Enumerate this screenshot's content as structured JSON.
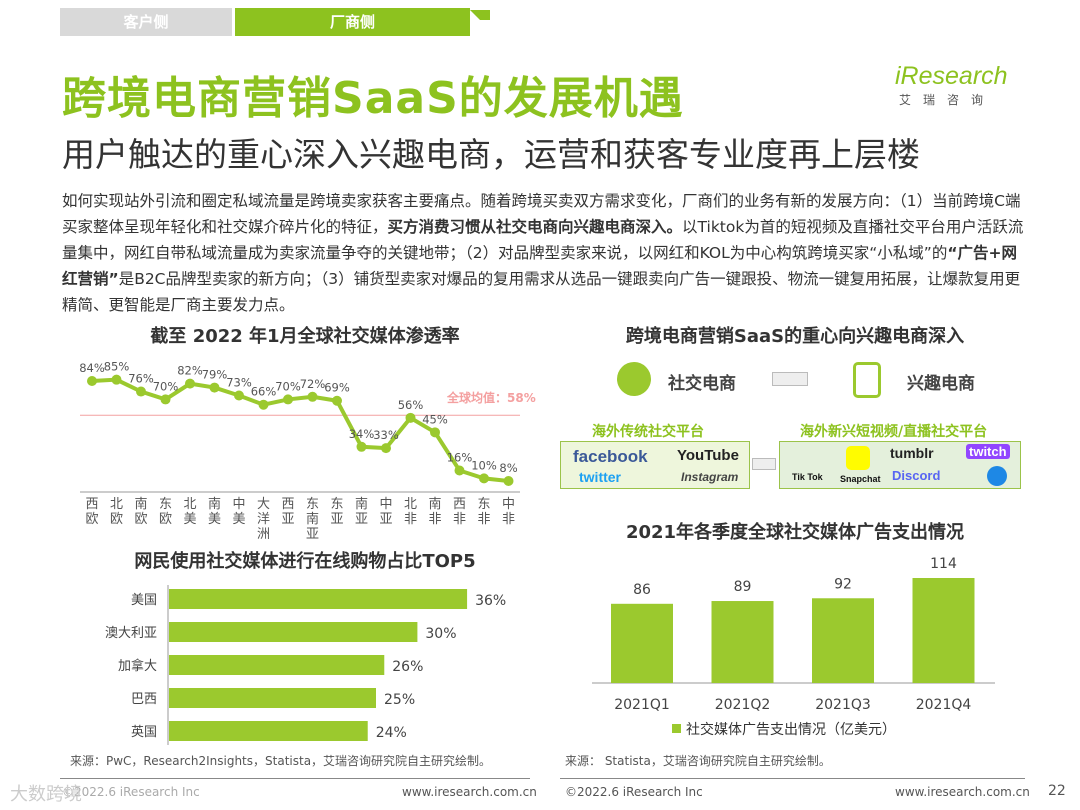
{
  "tabs": [
    {
      "label": "客户侧"
    },
    {
      "label": "厂商侧"
    }
  ],
  "title": "跨境电商营销SaaS的发展机遇",
  "subtitle": "用户触达的重心深入兴趣电商，运营和获客专业度再上层楼",
  "logo": {
    "brand": "iResearch",
    "cn": "艾瑞咨询"
  },
  "paragraph": {
    "p1": "如何实现站外引流和圈定私域流量是跨境卖家获客主要痛点。随着跨境买卖双方需求变化，厂商们的业务有新的发展方向：（1）当前跨境C端买家整体呈现年轻化和社交媒介碎片化的特征，",
    "b1": "买方消费习惯从社交电商向兴趣电商深入。",
    "p2": "以Tiktok为首的短视频及直播社交平台用户活跃流量集中，网红自带私域流量成为卖家流量争夺的关键地带；（2）对品牌型卖家来说，以网红和KOL为中心构筑跨境买家“小私域”的",
    "b2": "“广告+网红营销”",
    "p3": "是B2C品牌型卖家的新方向；（3）铺货型卖家对爆品的复用需求从选品一键跟卖向广告一键跟投、物流一键复用拓展，让爆款复用更精简、更智能是厂商主要发力点。"
  },
  "diagram": {
    "title": "跨境电商营销SaaS的重心向兴趣电商深入",
    "from": "社交电商",
    "to": "兴趣电商",
    "traditional": {
      "label": "海外传统社交平台",
      "platforms": [
        "facebook",
        "YouTube",
        "twitter",
        "Instagram"
      ]
    },
    "emerging": {
      "label": "海外新兴短视频/直播社交平台",
      "platforms": [
        "Tik Tok",
        "Snapchat",
        "tumblr",
        "twitch",
        "Discord",
        "Messenger"
      ]
    }
  },
  "chart_data": [
    {
      "type": "line",
      "title": "截至 2022 年1月全球社交媒体渗透率",
      "categories": [
        "西欧",
        "北欧",
        "南欧",
        "东欧",
        "北美",
        "南美",
        "中美",
        "大洋洲",
        "西亚",
        "东南亚",
        "东亚",
        "南亚",
        "中亚",
        "北非",
        "南非",
        "西非",
        "东非",
        "中非"
      ],
      "values": [
        84,
        85,
        76,
        70,
        82,
        79,
        73,
        66,
        70,
        72,
        69,
        34,
        33,
        56,
        45,
        16,
        10,
        8
      ],
      "unit": "%",
      "reference": {
        "label": "全球均值：58%",
        "value": 58,
        "color": "#f4a0a0"
      },
      "color": "#9bc92e"
    },
    {
      "type": "bar",
      "orientation": "horizontal",
      "title": "网民使用社交媒体进行在线购物占比TOP5",
      "categories": [
        "美国",
        "澳大利亚",
        "加拿大",
        "巴西",
        "英国"
      ],
      "values": [
        36,
        30,
        26,
        25,
        24
      ],
      "unit": "%",
      "color": "#9bc92e"
    },
    {
      "type": "bar",
      "title": "2021年各季度全球社交媒体广告支出情况",
      "categories": [
        "2021Q1",
        "2021Q2",
        "2021Q3",
        "2021Q4"
      ],
      "values": [
        86,
        89,
        92,
        114
      ],
      "series": [
        {
          "name": "社交媒体广告支出情况（亿美元）",
          "values": [
            86,
            89,
            92,
            114
          ]
        }
      ],
      "legend": "bottom",
      "color": "#9bc92e"
    }
  ],
  "sources": {
    "left": "来源：PwC，Research2Insights，Statista，艾瑞咨询研究院自主研究绘制。",
    "right": "来源： Statista，艾瑞咨询研究院自主研究绘制。"
  },
  "footer": {
    "copyright_left": "©2022.6 iResearch Inc",
    "url_left": "www.iresearch.com.cn",
    "copyright_right": "©2022.6 iResearch Inc",
    "url_right": "www.iresearch.com.cn",
    "page": "22",
    "watermark": "大数跨境"
  }
}
